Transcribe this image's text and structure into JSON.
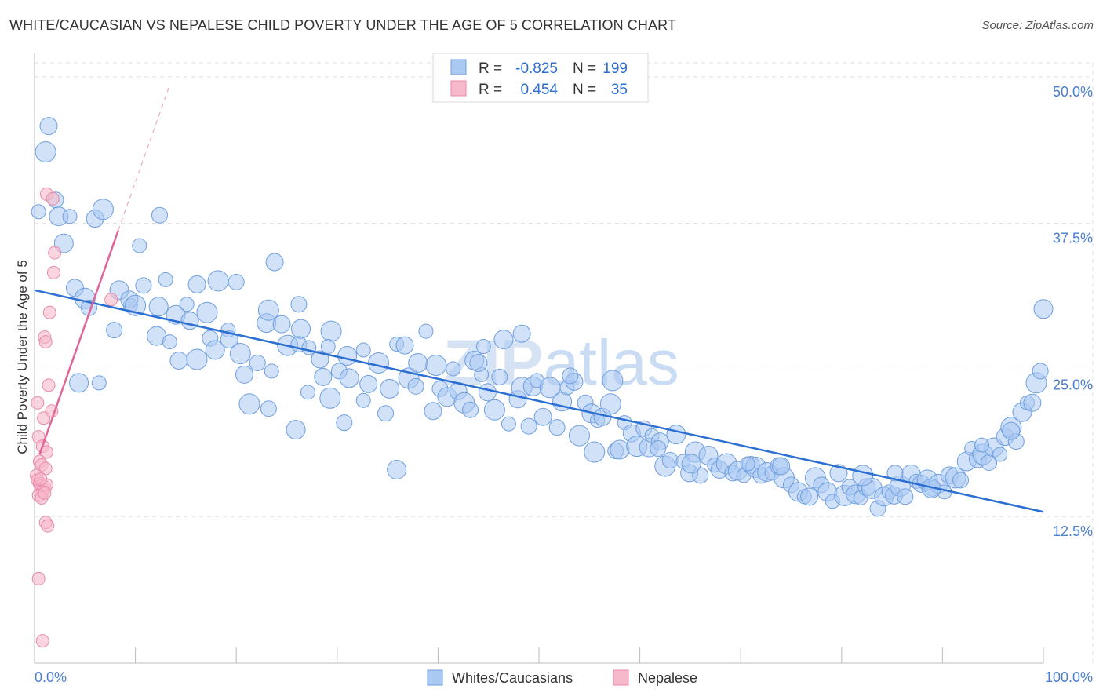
{
  "title": "WHITE/CAUCASIAN VS NEPALESE CHILD POVERTY UNDER THE AGE OF 5 CORRELATION CHART",
  "source": "Source: ZipAtlas.com",
  "watermark": "ZIPatlas",
  "colors": {
    "blue_fill": "#a9c8f2",
    "blue_stroke": "#6f9fe0",
    "blue_line": "#2b6fd3",
    "pink_fill": "#f6b9cc",
    "pink_stroke": "#e98aa8",
    "pink_line": "#e0669a",
    "axis_text": "#4a7fd0",
    "grid": "#dddddd"
  },
  "legend": {
    "rows": [
      {
        "r_label": "R =",
        "r_value": "-0.825",
        "n_label": "N =",
        "n_value": "199"
      },
      {
        "r_label": "R =",
        "r_value": "0.454",
        "n_label": "N =",
        "n_value": "35"
      }
    ]
  },
  "bottom_legend": [
    "Whites/Caucasians",
    "Nepalese"
  ],
  "chart_data": {
    "type": "scatter",
    "title": "WHITE/CAUCASIAN VS NEPALESE CHILD POVERTY UNDER THE AGE OF 5 CORRELATION CHART",
    "xlabel": "",
    "ylabel": "Child Poverty Under the Age of 5",
    "xlim": [
      0,
      100
    ],
    "ylim": [
      0,
      52
    ],
    "x_tick_labels": [
      "0.0%",
      "100.0%"
    ],
    "y_ticks": [
      12.5,
      25.0,
      37.5,
      50.0
    ],
    "y_tick_labels": [
      "12.5%",
      "25.0%",
      "37.5%",
      "50.0%"
    ],
    "grid": true,
    "legend_position": "top-center",
    "series": [
      {
        "name": "Whites/Caucasians",
        "r": -0.825,
        "n": 199,
        "trend": {
          "x": [
            0,
            100
          ],
          "y": [
            31.8,
            12.9
          ]
        },
        "points": [
          [
            0.4,
            38.5
          ],
          [
            1.4,
            45.8
          ],
          [
            1.1,
            43.6
          ],
          [
            2.1,
            39.5
          ],
          [
            2.4,
            38.1
          ],
          [
            3.5,
            38.1
          ],
          [
            6.0,
            37.9
          ],
          [
            6.8,
            38.7
          ],
          [
            12.4,
            38.2
          ],
          [
            2.9,
            35.8
          ],
          [
            10.4,
            35.6
          ],
          [
            4.0,
            32.0
          ],
          [
            5.0,
            31.1
          ],
          [
            5.4,
            30.3
          ],
          [
            8.4,
            31.8
          ],
          [
            9.5,
            30.5
          ],
          [
            9.4,
            31.0
          ],
          [
            10.0,
            30.5
          ],
          [
            10.8,
            32.2
          ],
          [
            12.3,
            30.4
          ],
          [
            13.0,
            32.7
          ],
          [
            16.1,
            32.3
          ],
          [
            18.2,
            32.6
          ],
          [
            20.0,
            32.5
          ],
          [
            14.0,
            29.7
          ],
          [
            15.1,
            30.6
          ],
          [
            15.4,
            29.2
          ],
          [
            17.1,
            29.9
          ],
          [
            7.9,
            28.4
          ],
          [
            12.1,
            27.9
          ],
          [
            13.4,
            27.4
          ],
          [
            14.3,
            25.8
          ],
          [
            16.1,
            25.9
          ],
          [
            17.4,
            27.7
          ],
          [
            17.9,
            26.7
          ],
          [
            19.2,
            28.4
          ],
          [
            19.3,
            27.6
          ],
          [
            20.4,
            26.4
          ],
          [
            22.1,
            25.6
          ],
          [
            23.0,
            29.0
          ],
          [
            23.5,
            24.9
          ],
          [
            24.5,
            28.9
          ],
          [
            25.1,
            27.1
          ],
          [
            26.2,
            27.2
          ],
          [
            26.4,
            28.5
          ],
          [
            27.2,
            26.9
          ],
          [
            28.3,
            25.9
          ],
          [
            29.4,
            28.3
          ],
          [
            30.2,
            24.9
          ],
          [
            31.0,
            26.2
          ],
          [
            32.6,
            26.7
          ],
          [
            23.8,
            34.2
          ],
          [
            23.2,
            30.1
          ],
          [
            26.2,
            30.6
          ],
          [
            4.4,
            23.9
          ],
          [
            6.4,
            23.9
          ],
          [
            20.8,
            24.6
          ],
          [
            21.3,
            22.1
          ],
          [
            23.2,
            21.7
          ],
          [
            25.9,
            19.9
          ],
          [
            27.1,
            23.1
          ],
          [
            28.6,
            24.4
          ],
          [
            29.3,
            22.6
          ],
          [
            30.7,
            20.5
          ],
          [
            31.2,
            24.3
          ],
          [
            32.6,
            22.4
          ],
          [
            33.1,
            23.8
          ],
          [
            34.1,
            25.6
          ],
          [
            34.8,
            21.3
          ],
          [
            35.2,
            23.4
          ],
          [
            35.9,
            27.2
          ],
          [
            36.7,
            27.1
          ],
          [
            37.1,
            24.3
          ],
          [
            37.8,
            23.6
          ],
          [
            38.0,
            25.6
          ],
          [
            38.8,
            28.3
          ],
          [
            39.5,
            21.5
          ],
          [
            39.8,
            25.4
          ],
          [
            40.2,
            23.4
          ],
          [
            40.9,
            22.7
          ],
          [
            41.5,
            25.1
          ],
          [
            42.0,
            23.2
          ],
          [
            42.6,
            22.2
          ],
          [
            43.2,
            21.6
          ],
          [
            43.6,
            25.8
          ],
          [
            44.3,
            24.6
          ],
          [
            44.9,
            23.1
          ],
          [
            45.6,
            21.6
          ],
          [
            46.1,
            24.4
          ],
          [
            46.5,
            27.6
          ],
          [
            47.0,
            20.4
          ],
          [
            47.9,
            22.5
          ],
          [
            48.3,
            23.5
          ],
          [
            49.0,
            20.2
          ],
          [
            49.4,
            23.6
          ],
          [
            49.8,
            24.1
          ],
          [
            50.4,
            21.0
          ],
          [
            51.1,
            23.5
          ],
          [
            51.8,
            20.1
          ],
          [
            52.3,
            22.3
          ],
          [
            52.8,
            23.5
          ],
          [
            53.5,
            24.0
          ],
          [
            54.0,
            19.4
          ],
          [
            54.6,
            22.2
          ],
          [
            55.2,
            21.3
          ],
          [
            55.8,
            20.7
          ],
          [
            56.3,
            21.0
          ],
          [
            57.1,
            22.1
          ],
          [
            57.6,
            18.1
          ],
          [
            58.0,
            18.2
          ],
          [
            58.5,
            20.5
          ],
          [
            59.2,
            19.6
          ],
          [
            59.7,
            18.5
          ],
          [
            60.4,
            20.0
          ],
          [
            60.9,
            18.4
          ],
          [
            61.2,
            19.4
          ],
          [
            62.0,
            18.9
          ],
          [
            62.5,
            16.8
          ],
          [
            63.0,
            17.3
          ],
          [
            63.6,
            19.5
          ],
          [
            64.3,
            17.2
          ],
          [
            64.9,
            16.2
          ],
          [
            65.5,
            18.0
          ],
          [
            66.0,
            16.0
          ],
          [
            66.8,
            17.7
          ],
          [
            67.4,
            16.9
          ],
          [
            67.9,
            16.5
          ],
          [
            68.6,
            17.0
          ],
          [
            69.2,
            16.2
          ],
          [
            69.7,
            16.4
          ],
          [
            70.3,
            16.0
          ],
          [
            71.0,
            16.9
          ],
          [
            71.5,
            16.7
          ],
          [
            72.0,
            16.0
          ],
          [
            72.6,
            16.3
          ],
          [
            73.1,
            16.2
          ],
          [
            73.8,
            16.8
          ],
          [
            74.3,
            15.8
          ],
          [
            75.0,
            15.2
          ],
          [
            75.7,
            14.6
          ],
          [
            76.3,
            14.2
          ],
          [
            76.8,
            14.2
          ],
          [
            77.4,
            15.8
          ],
          [
            78.0,
            15.2
          ],
          [
            78.6,
            14.6
          ],
          [
            79.1,
            13.8
          ],
          [
            79.7,
            16.2
          ],
          [
            80.3,
            14.3
          ],
          [
            80.8,
            15.0
          ],
          [
            81.4,
            14.4
          ],
          [
            81.9,
            14.1
          ],
          [
            82.5,
            15.0
          ],
          [
            83.0,
            14.9
          ],
          [
            83.6,
            13.2
          ],
          [
            84.2,
            14.2
          ],
          [
            84.7,
            14.6
          ],
          [
            85.2,
            14.3
          ],
          [
            85.8,
            15.1
          ],
          [
            86.3,
            14.2
          ],
          [
            86.9,
            16.1
          ],
          [
            87.4,
            15.5
          ],
          [
            87.9,
            15.3
          ],
          [
            88.5,
            15.6
          ],
          [
            89.0,
            14.9
          ],
          [
            89.6,
            15.3
          ],
          [
            90.2,
            14.6
          ],
          [
            90.7,
            16.0
          ],
          [
            91.3,
            15.8
          ],
          [
            91.8,
            15.6
          ],
          [
            92.4,
            17.2
          ],
          [
            92.9,
            18.3
          ],
          [
            93.5,
            17.4
          ],
          [
            94.0,
            17.8
          ],
          [
            94.6,
            17.1
          ],
          [
            95.1,
            18.4
          ],
          [
            95.7,
            17.8
          ],
          [
            96.2,
            19.3
          ],
          [
            96.8,
            20.1
          ],
          [
            97.3,
            18.9
          ],
          [
            97.9,
            21.4
          ],
          [
            98.4,
            22.2
          ],
          [
            98.9,
            22.2
          ],
          [
            99.3,
            23.9
          ],
          [
            99.7,
            24.9
          ],
          [
            100.0,
            30.2
          ],
          [
            44.5,
            27.0
          ],
          [
            48.3,
            28.1
          ],
          [
            55.5,
            18.0
          ],
          [
            61.8,
            18.3
          ],
          [
            65.1,
            17.0
          ],
          [
            70.7,
            17.0
          ],
          [
            74.0,
            16.8
          ],
          [
            82.1,
            16.0
          ],
          [
            85.3,
            16.2
          ],
          [
            88.9,
            14.9
          ],
          [
            93.9,
            18.6
          ],
          [
            96.8,
            19.8
          ],
          [
            57.3,
            24.1
          ],
          [
            53.1,
            24.5
          ],
          [
            35.9,
            16.5
          ],
          [
            29.1,
            27.0
          ],
          [
            44.0,
            25.6
          ]
        ]
      },
      {
        "name": "Nepalese",
        "r": 0.454,
        "n": 35,
        "trend": {
          "x": [
            0.5,
            8.3
          ],
          "y": [
            17.8,
            36.9
          ],
          "dashed_extension": {
            "x": [
              8.3,
              13.4
            ],
            "y": [
              36.9,
              49.3
            ]
          }
        },
        "points": [
          [
            1.2,
            40.0
          ],
          [
            1.8,
            39.6
          ],
          [
            2.0,
            35.0
          ],
          [
            1.9,
            33.3
          ],
          [
            1.5,
            29.9
          ],
          [
            1.0,
            27.8
          ],
          [
            1.1,
            27.4
          ],
          [
            1.4,
            23.7
          ],
          [
            1.7,
            21.5
          ],
          [
            0.9,
            20.9
          ],
          [
            0.3,
            22.2
          ],
          [
            0.4,
            19.3
          ],
          [
            0.8,
            18.5
          ],
          [
            1.2,
            18.0
          ],
          [
            0.5,
            17.2
          ],
          [
            0.7,
            16.9
          ],
          [
            1.1,
            16.6
          ],
          [
            0.2,
            16.0
          ],
          [
            0.3,
            15.6
          ],
          [
            0.5,
            15.3
          ],
          [
            0.6,
            15.1
          ],
          [
            0.7,
            14.9
          ],
          [
            0.9,
            14.8
          ],
          [
            1.0,
            15.0
          ],
          [
            1.2,
            15.2
          ],
          [
            0.8,
            14.6
          ],
          [
            0.4,
            14.3
          ],
          [
            0.7,
            14.1
          ],
          [
            1.0,
            14.5
          ],
          [
            1.1,
            12.0
          ],
          [
            1.3,
            11.7
          ],
          [
            0.4,
            7.2
          ],
          [
            0.8,
            1.9
          ],
          [
            7.6,
            31.0
          ],
          [
            0.6,
            15.7
          ]
        ]
      }
    ]
  }
}
